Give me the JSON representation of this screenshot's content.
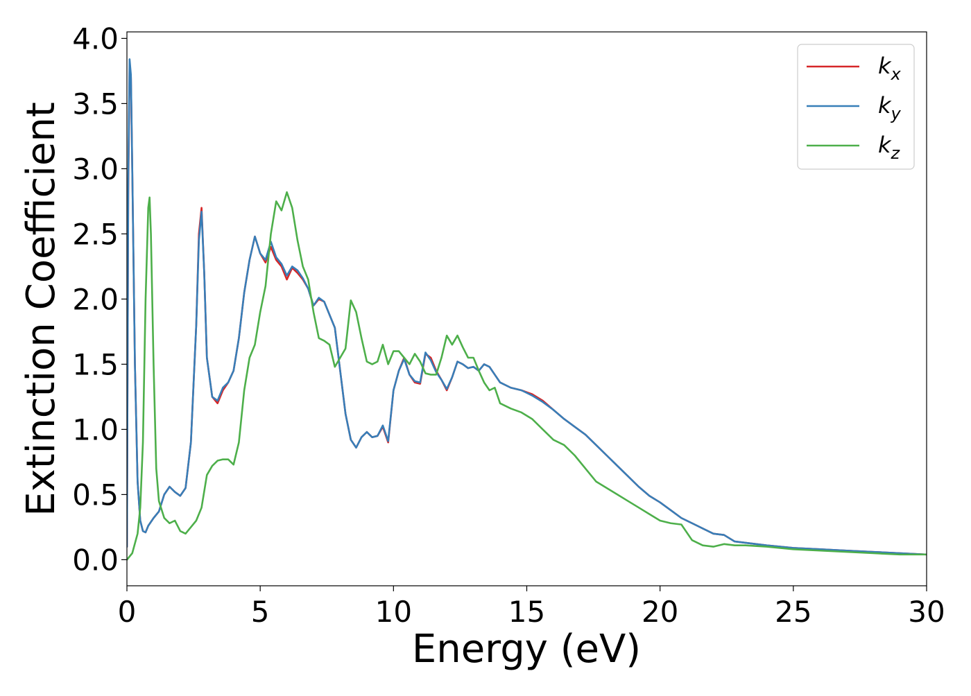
{
  "chart_data": {
    "type": "line",
    "title": "",
    "xlabel": "Energy (eV)",
    "ylabel": "Extinction Coefficient",
    "xlim": [
      0,
      30
    ],
    "ylim": [
      -0.2,
      4.05
    ],
    "xticks": [
      0,
      5,
      10,
      15,
      20,
      25,
      30
    ],
    "xtick_labels": [
      "0",
      "5",
      "10",
      "15",
      "20",
      "25",
      "30"
    ],
    "yticks": [
      0,
      0.5,
      1,
      1.5,
      2,
      2.5,
      3,
      3.5,
      4
    ],
    "ytick_labels": [
      "0.0",
      "0.5",
      "1.0",
      "1.5",
      "2.0",
      "2.5",
      "3.0",
      "3.5",
      "4.0"
    ],
    "grid": false,
    "legend": {
      "position": "top-right"
    },
    "series": [
      {
        "key": "kx",
        "name": "k",
        "subscript": "x",
        "color": "#d62728",
        "x": [
          0,
          0.05,
          0.1,
          0.15,
          0.2,
          0.3,
          0.4,
          0.5,
          0.6,
          0.7,
          0.8,
          1.0,
          1.2,
          1.4,
          1.6,
          1.8,
          2.0,
          2.2,
          2.4,
          2.6,
          2.7,
          2.8,
          2.9,
          3.0,
          3.2,
          3.4,
          3.6,
          3.8,
          4.0,
          4.2,
          4.4,
          4.6,
          4.8,
          5.0,
          5.2,
          5.4,
          5.6,
          5.8,
          6.0,
          6.2,
          6.4,
          6.6,
          6.8,
          7.0,
          7.2,
          7.4,
          7.6,
          7.8,
          8.0,
          8.2,
          8.4,
          8.6,
          8.8,
          9.0,
          9.2,
          9.4,
          9.6,
          9.8,
          10.0,
          10.2,
          10.4,
          10.6,
          10.8,
          11.0,
          11.2,
          11.4,
          11.6,
          11.8,
          12.0,
          12.2,
          12.4,
          12.6,
          12.8,
          13.0,
          13.2,
          13.4,
          13.6,
          13.8,
          14.0,
          14.4,
          14.8,
          15.2,
          15.6,
          16.0,
          16.4,
          16.8,
          17.2,
          17.6,
          18.0,
          18.4,
          18.8,
          19.2,
          19.6,
          20.0,
          20.4,
          20.8,
          21.2,
          21.6,
          22.0,
          22.4,
          22.8,
          23.2,
          24.0,
          25.0,
          26.0,
          27.0,
          28.0,
          29.0,
          30.0
        ],
        "y": [
          0.1,
          2.8,
          3.8,
          3.7,
          3.0,
          1.5,
          0.6,
          0.3,
          0.22,
          0.21,
          0.26,
          0.32,
          0.37,
          0.5,
          0.56,
          0.52,
          0.49,
          0.55,
          0.9,
          1.8,
          2.5,
          2.7,
          2.2,
          1.55,
          1.25,
          1.2,
          1.3,
          1.36,
          1.45,
          1.7,
          2.05,
          2.3,
          2.48,
          2.35,
          2.28,
          2.4,
          2.3,
          2.25,
          2.15,
          2.24,
          2.2,
          2.15,
          2.08,
          1.95,
          2.0,
          1.98,
          1.88,
          1.78,
          1.45,
          1.12,
          0.92,
          0.86,
          0.94,
          0.98,
          0.94,
          0.95,
          1.02,
          0.9,
          1.3,
          1.45,
          1.55,
          1.42,
          1.36,
          1.35,
          1.58,
          1.55,
          1.45,
          1.38,
          1.3,
          1.4,
          1.52,
          1.5,
          1.47,
          1.48,
          1.45,
          1.5,
          1.48,
          1.42,
          1.36,
          1.32,
          1.3,
          1.27,
          1.22,
          1.15,
          1.08,
          1.02,
          0.96,
          0.88,
          0.8,
          0.72,
          0.64,
          0.56,
          0.49,
          0.44,
          0.38,
          0.32,
          0.28,
          0.24,
          0.2,
          0.19,
          0.14,
          0.13,
          0.11,
          0.09,
          0.08,
          0.07,
          0.06,
          0.05,
          0.04
        ]
      },
      {
        "key": "ky",
        "name": "k",
        "subscript": "y",
        "color": "#377eb8",
        "x": [
          0,
          0.05,
          0.1,
          0.15,
          0.2,
          0.3,
          0.4,
          0.5,
          0.6,
          0.7,
          0.8,
          1.0,
          1.2,
          1.4,
          1.6,
          1.8,
          2.0,
          2.2,
          2.4,
          2.6,
          2.7,
          2.8,
          2.9,
          3.0,
          3.2,
          3.4,
          3.6,
          3.8,
          4.0,
          4.2,
          4.4,
          4.6,
          4.8,
          5.0,
          5.2,
          5.4,
          5.6,
          5.8,
          6.0,
          6.2,
          6.4,
          6.6,
          6.8,
          7.0,
          7.2,
          7.4,
          7.6,
          7.8,
          8.0,
          8.2,
          8.4,
          8.6,
          8.8,
          9.0,
          9.2,
          9.4,
          9.6,
          9.8,
          10.0,
          10.2,
          10.4,
          10.6,
          10.8,
          11.0,
          11.2,
          11.4,
          11.6,
          11.8,
          12.0,
          12.2,
          12.4,
          12.6,
          12.8,
          13.0,
          13.2,
          13.4,
          13.6,
          13.8,
          14.0,
          14.4,
          14.8,
          15.2,
          15.6,
          16.0,
          16.4,
          16.8,
          17.2,
          17.6,
          18.0,
          18.4,
          18.8,
          19.2,
          19.6,
          20.0,
          20.4,
          20.8,
          21.2,
          21.6,
          22.0,
          22.4,
          22.8,
          23.2,
          24.0,
          25.0,
          26.0,
          27.0,
          28.0,
          29.0,
          30.0
        ],
        "y": [
          0.1,
          2.9,
          3.84,
          3.72,
          3.0,
          1.5,
          0.6,
          0.3,
          0.22,
          0.21,
          0.26,
          0.32,
          0.37,
          0.5,
          0.56,
          0.52,
          0.49,
          0.55,
          0.9,
          1.8,
          2.45,
          2.67,
          2.2,
          1.55,
          1.25,
          1.22,
          1.32,
          1.36,
          1.45,
          1.7,
          2.05,
          2.3,
          2.48,
          2.35,
          2.3,
          2.44,
          2.32,
          2.27,
          2.18,
          2.25,
          2.22,
          2.16,
          2.08,
          1.95,
          2.01,
          1.98,
          1.88,
          1.78,
          1.45,
          1.12,
          0.92,
          0.86,
          0.94,
          0.98,
          0.94,
          0.95,
          1.03,
          0.91,
          1.3,
          1.45,
          1.54,
          1.42,
          1.37,
          1.36,
          1.59,
          1.53,
          1.44,
          1.38,
          1.31,
          1.4,
          1.52,
          1.5,
          1.47,
          1.48,
          1.45,
          1.5,
          1.48,
          1.42,
          1.36,
          1.32,
          1.3,
          1.26,
          1.21,
          1.15,
          1.08,
          1.02,
          0.96,
          0.88,
          0.8,
          0.72,
          0.64,
          0.56,
          0.49,
          0.44,
          0.38,
          0.32,
          0.28,
          0.24,
          0.2,
          0.19,
          0.14,
          0.13,
          0.11,
          0.09,
          0.08,
          0.07,
          0.06,
          0.05,
          0.04
        ]
      },
      {
        "key": "kz",
        "name": "k",
        "subscript": "z",
        "color": "#4daf4a",
        "x": [
          0,
          0.2,
          0.4,
          0.5,
          0.6,
          0.7,
          0.8,
          0.85,
          0.9,
          1.0,
          1.1,
          1.2,
          1.4,
          1.6,
          1.8,
          2.0,
          2.2,
          2.4,
          2.6,
          2.8,
          3.0,
          3.2,
          3.4,
          3.6,
          3.8,
          4.0,
          4.2,
          4.4,
          4.6,
          4.8,
          5.0,
          5.2,
          5.4,
          5.6,
          5.8,
          6.0,
          6.2,
          6.4,
          6.6,
          6.8,
          7.0,
          7.2,
          7.4,
          7.6,
          7.8,
          8.0,
          8.2,
          8.4,
          8.6,
          8.8,
          9.0,
          9.2,
          9.4,
          9.6,
          9.8,
          10.0,
          10.2,
          10.4,
          10.6,
          10.8,
          11.0,
          11.2,
          11.4,
          11.6,
          11.8,
          12.0,
          12.2,
          12.4,
          12.6,
          12.8,
          13.0,
          13.2,
          13.4,
          13.6,
          13.8,
          14.0,
          14.4,
          14.8,
          15.2,
          15.6,
          16.0,
          16.4,
          16.8,
          17.2,
          17.6,
          18.0,
          18.4,
          18.8,
          19.2,
          19.6,
          20.0,
          20.4,
          20.8,
          21.2,
          21.6,
          22.0,
          22.4,
          22.8,
          23.2,
          24.0,
          25.0,
          26.0,
          27.0,
          28.0,
          29.0,
          30.0
        ],
        "y": [
          0.0,
          0.05,
          0.2,
          0.4,
          0.9,
          2.0,
          2.7,
          2.78,
          2.5,
          1.5,
          0.7,
          0.45,
          0.32,
          0.28,
          0.3,
          0.22,
          0.2,
          0.25,
          0.3,
          0.4,
          0.65,
          0.72,
          0.76,
          0.77,
          0.77,
          0.73,
          0.9,
          1.3,
          1.55,
          1.65,
          1.9,
          2.1,
          2.5,
          2.75,
          2.68,
          2.82,
          2.7,
          2.45,
          2.25,
          2.15,
          1.9,
          1.7,
          1.68,
          1.65,
          1.48,
          1.55,
          1.62,
          1.99,
          1.9,
          1.7,
          1.52,
          1.5,
          1.52,
          1.65,
          1.5,
          1.6,
          1.6,
          1.55,
          1.5,
          1.58,
          1.52,
          1.43,
          1.42,
          1.42,
          1.55,
          1.72,
          1.65,
          1.72,
          1.63,
          1.55,
          1.55,
          1.45,
          1.36,
          1.3,
          1.32,
          1.2,
          1.16,
          1.13,
          1.08,
          1.0,
          0.92,
          0.88,
          0.8,
          0.7,
          0.6,
          0.55,
          0.5,
          0.45,
          0.4,
          0.35,
          0.3,
          0.28,
          0.27,
          0.15,
          0.11,
          0.1,
          0.12,
          0.11,
          0.11,
          0.1,
          0.08,
          0.07,
          0.06,
          0.05,
          0.04,
          0.04
        ]
      }
    ]
  }
}
